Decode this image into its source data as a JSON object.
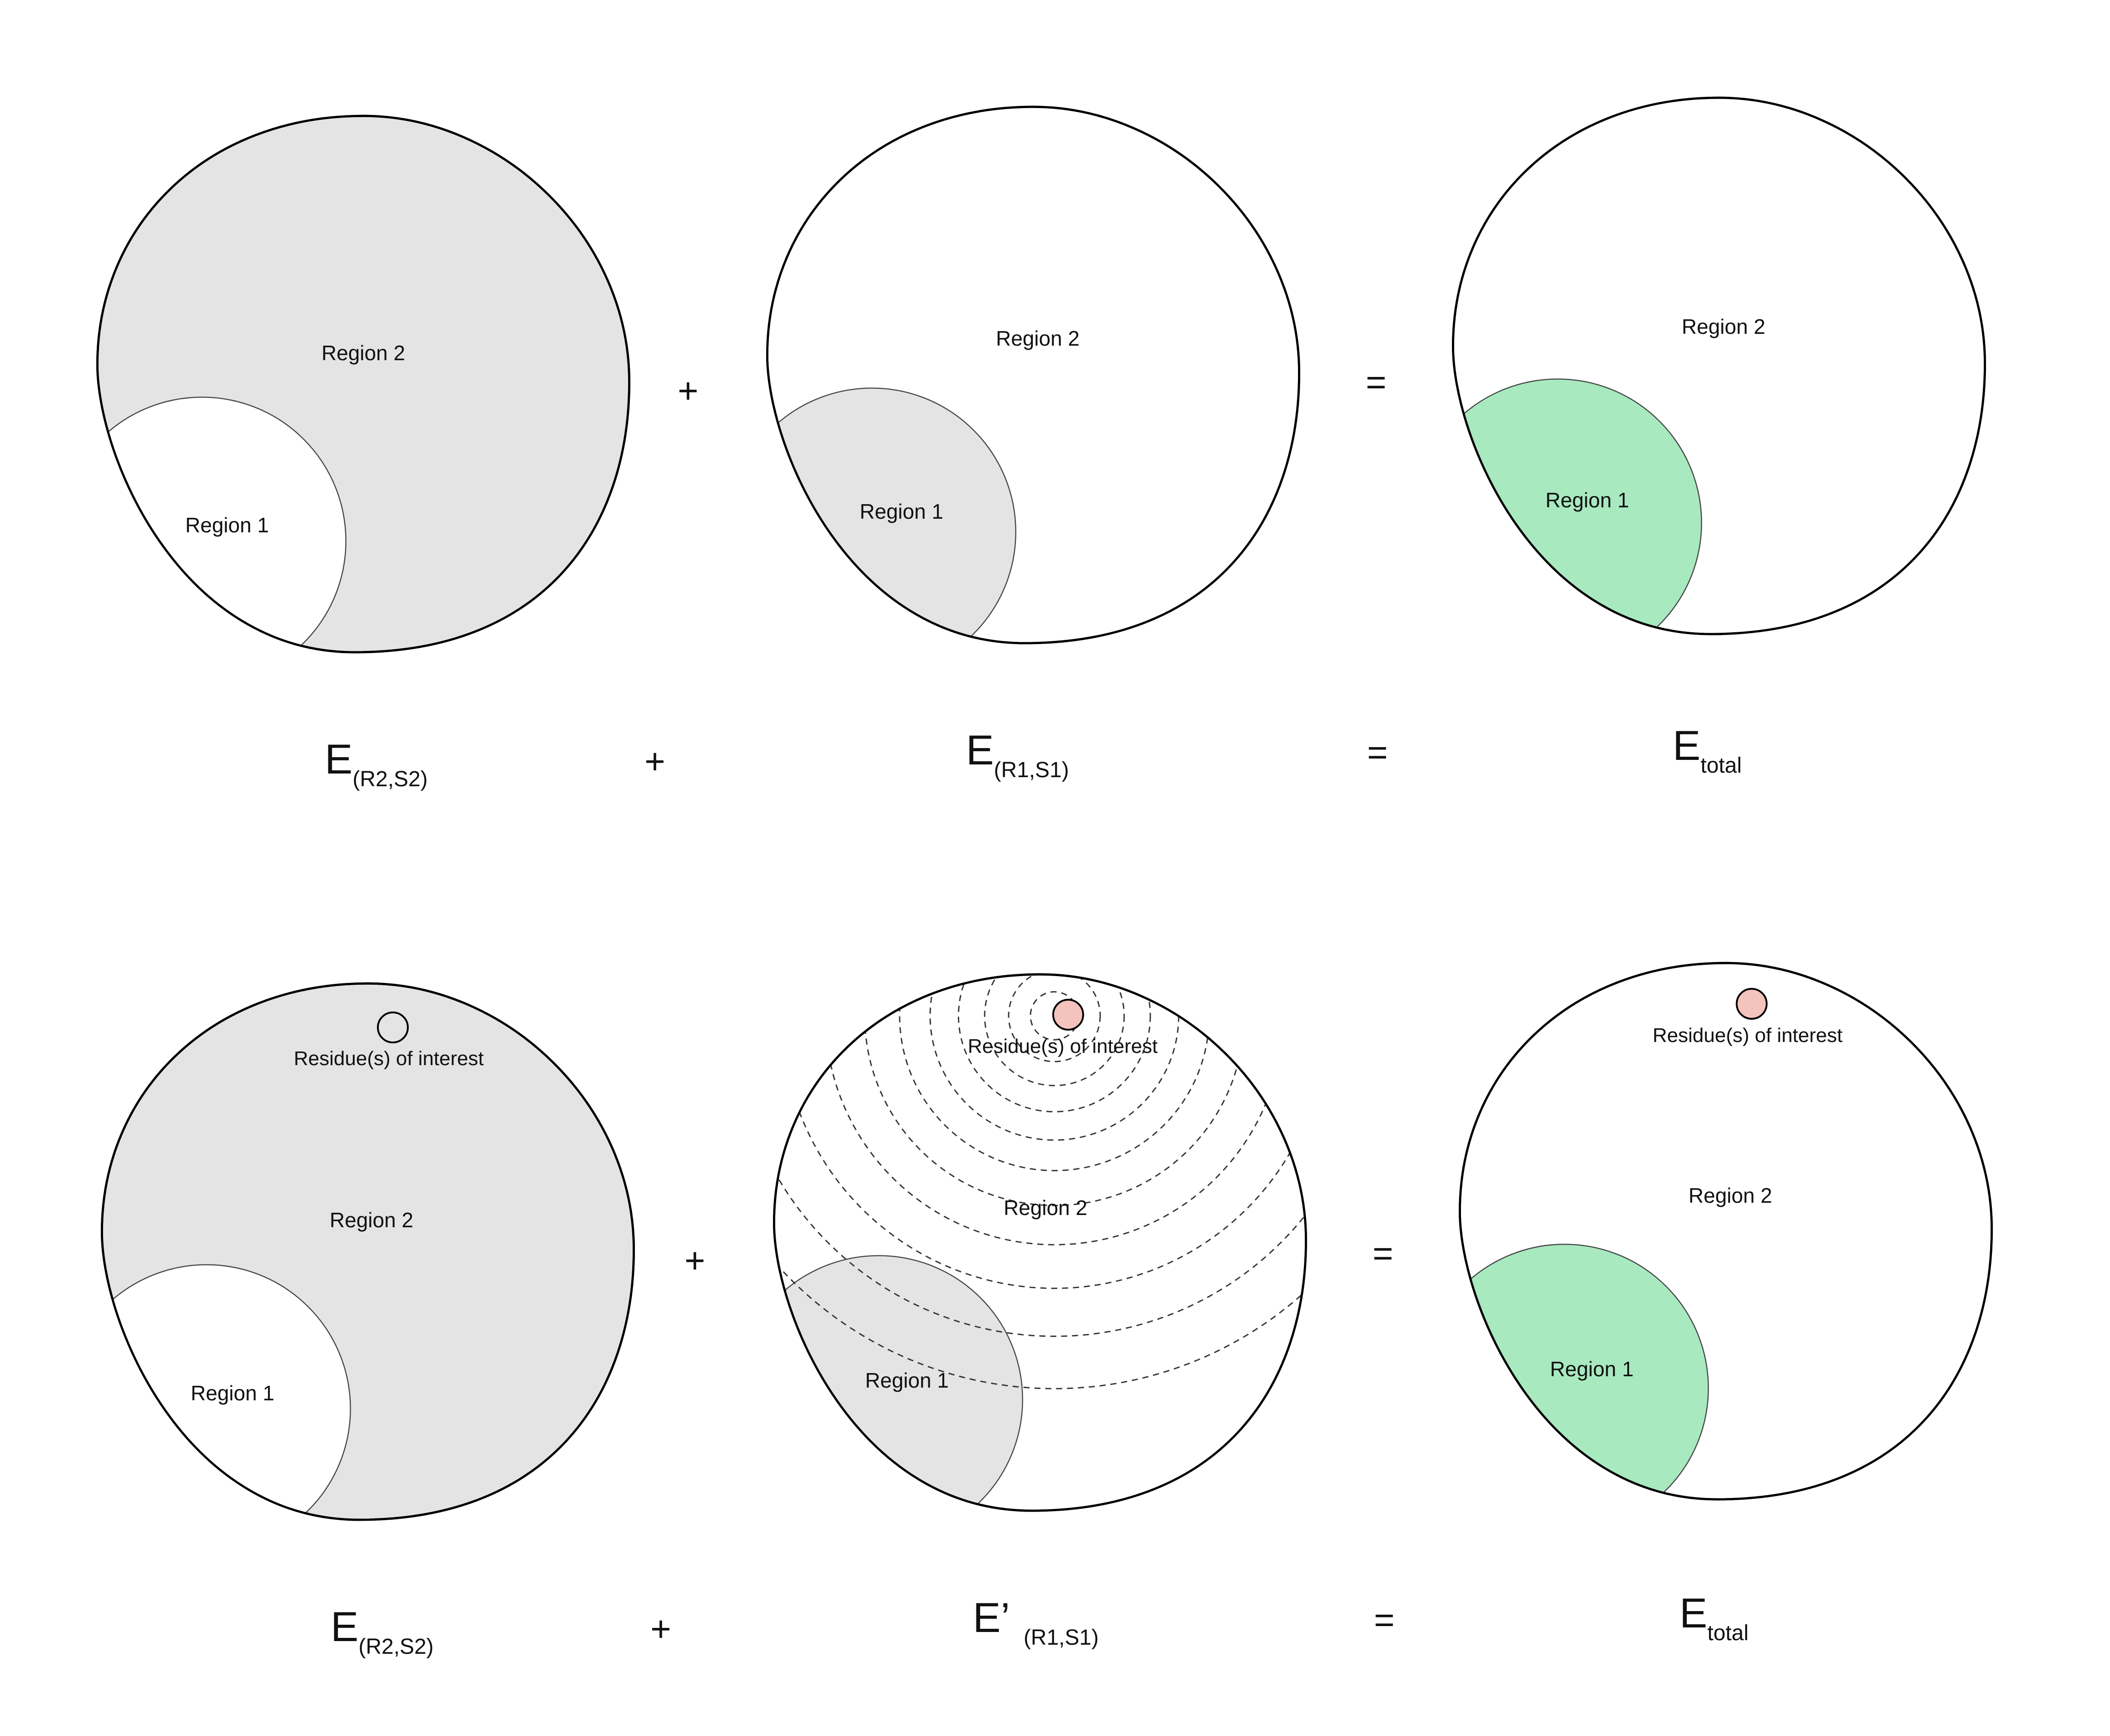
{
  "colors": {
    "shaded": "#e4e4e4",
    "unshaded": "#ffffff",
    "result": "#a8e9c0",
    "residue_fill": "#f5c3bd",
    "outline": "#000000"
  },
  "row1": {
    "panel1": {
      "region2": "Region 2",
      "region1": "Region 1",
      "shaded_region": "Region 2"
    },
    "plus_panels": "+",
    "panel2": {
      "region2": "Region 2",
      "region1": "Region 1",
      "shaded_region": "Region 1"
    },
    "equals_panels": "=",
    "panel3": {
      "region2": "Region 2",
      "region1": "Region 1",
      "highlighted_region": "Region 1"
    },
    "eq": {
      "term1_main": "E",
      "term1_sub": "(R2,S2)",
      "plus": "+",
      "term2_main": "E",
      "term2_sub": "(R1,S1)",
      "equals": "=",
      "term3_main": "E",
      "term3_sub": "total"
    }
  },
  "row2": {
    "panel1": {
      "residue": "Residue(s) of interest",
      "region2": "Region 2",
      "region1": "Region 1",
      "shaded_region": "Region 2"
    },
    "plus_panels": "+",
    "panel2": {
      "residue": "Residue(s) of interest",
      "region2": "Region 2",
      "region1": "Region 1",
      "shaded_region": "Region 1",
      "dashed_rings": 11
    },
    "equals_panels": "=",
    "panel3": {
      "residue": "Residue(s) of interest",
      "region2": "Region 2",
      "region1": "Region 1",
      "highlighted_region": "Region 1"
    },
    "eq": {
      "term1_main": "E",
      "term1_sub": "(R2,S2)",
      "plus": "+",
      "term2_main": "E’",
      "term2_sub": "(R1,S1)",
      "equals": "=",
      "term3_main": "E",
      "term3_sub": "total"
    }
  }
}
